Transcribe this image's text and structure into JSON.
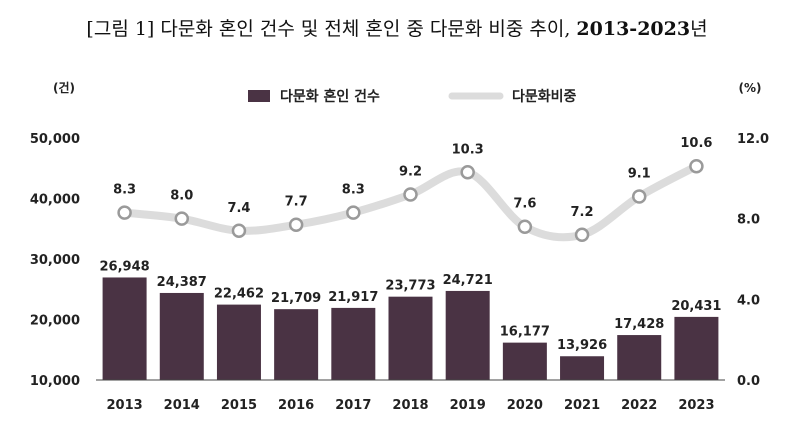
{
  "title": {
    "main": "[그림 1] 다문화 혼인 건수 및 전체 혼인 중 다문화 비중 추이,",
    "years": "2013-2023",
    "suffix": "년"
  },
  "chart_data": {
    "type": "bar",
    "categories": [
      "2013",
      "2014",
      "2015",
      "2016",
      "2017",
      "2018",
      "2019",
      "2020",
      "2021",
      "2022",
      "2023"
    ],
    "series": [
      {
        "name": "다문화 혼인 건수",
        "type": "bar",
        "axis": "left",
        "values": [
          26948,
          24387,
          22462,
          21709,
          21917,
          23773,
          24721,
          16177,
          13926,
          17428,
          20431
        ],
        "labels": [
          "26,948",
          "24,387",
          "22,462",
          "21,709",
          "21,917",
          "23,773",
          "24,721",
          "16,177",
          "13,926",
          "17,428",
          "20,431"
        ],
        "color": "#4a3344"
      },
      {
        "name": "다문화비중",
        "type": "line",
        "axis": "right",
        "values": [
          8.3,
          8.0,
          7.4,
          7.7,
          8.3,
          9.2,
          10.3,
          7.6,
          7.2,
          9.1,
          10.6
        ],
        "labels": [
          "8.3",
          "8.0",
          "7.4",
          "7.7",
          "8.3",
          "9.2",
          "10.3",
          "7.6",
          "7.2",
          "9.1",
          "10.6"
        ],
        "color": "#dcdcdc"
      }
    ],
    "y_left": {
      "unit": "(건)",
      "ylim": [
        10000,
        50000
      ],
      "ticks": [
        "10,000",
        "20,000",
        "30,000",
        "40,000",
        "50,000"
      ]
    },
    "y_right": {
      "unit": "(%)",
      "ylim": [
        0,
        12
      ],
      "ticks": [
        "0.0",
        "4.0",
        "8.0",
        "12.0"
      ]
    },
    "legend_position": "top-center",
    "grid": false
  }
}
